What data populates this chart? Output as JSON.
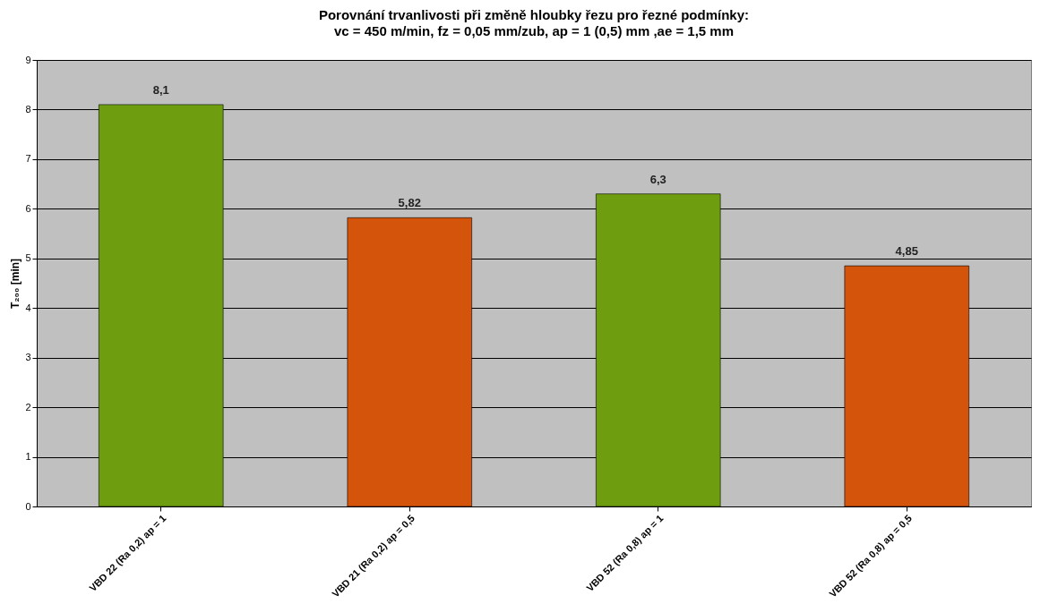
{
  "chart_data": {
    "type": "bar",
    "title": "Porovnání trvanlivosti při změně hloubky řezu pro řezné podmínky:",
    "subtitle": "vc = 450  m/min, fz = 0,05 mm/zub, ap = 1 (0,5) mm ,ae = 1,5 mm",
    "ylabel": "T₂₀₀ [min]",
    "categories": [
      "VBD 22 (Ra 0,2) ap = 1",
      "VBD 21 (Ra 0,2) ap = 0,5",
      "VBD 52 (Ra 0,8) ap = 1",
      "VBD 52 (Ra 0,8) ap = 0,5"
    ],
    "values": [
      8.1,
      5.82,
      6.3,
      4.85
    ],
    "value_labels": [
      "8,1",
      "5,82",
      "6,3",
      "4,85"
    ],
    "colors": [
      "#6e9e10",
      "#d4540c",
      "#6e9e10",
      "#d4540c"
    ],
    "ylim": [
      0,
      9
    ],
    "yticks": [
      0,
      1,
      2,
      3,
      4,
      5,
      6,
      7,
      8,
      9
    ],
    "grid": "y"
  }
}
